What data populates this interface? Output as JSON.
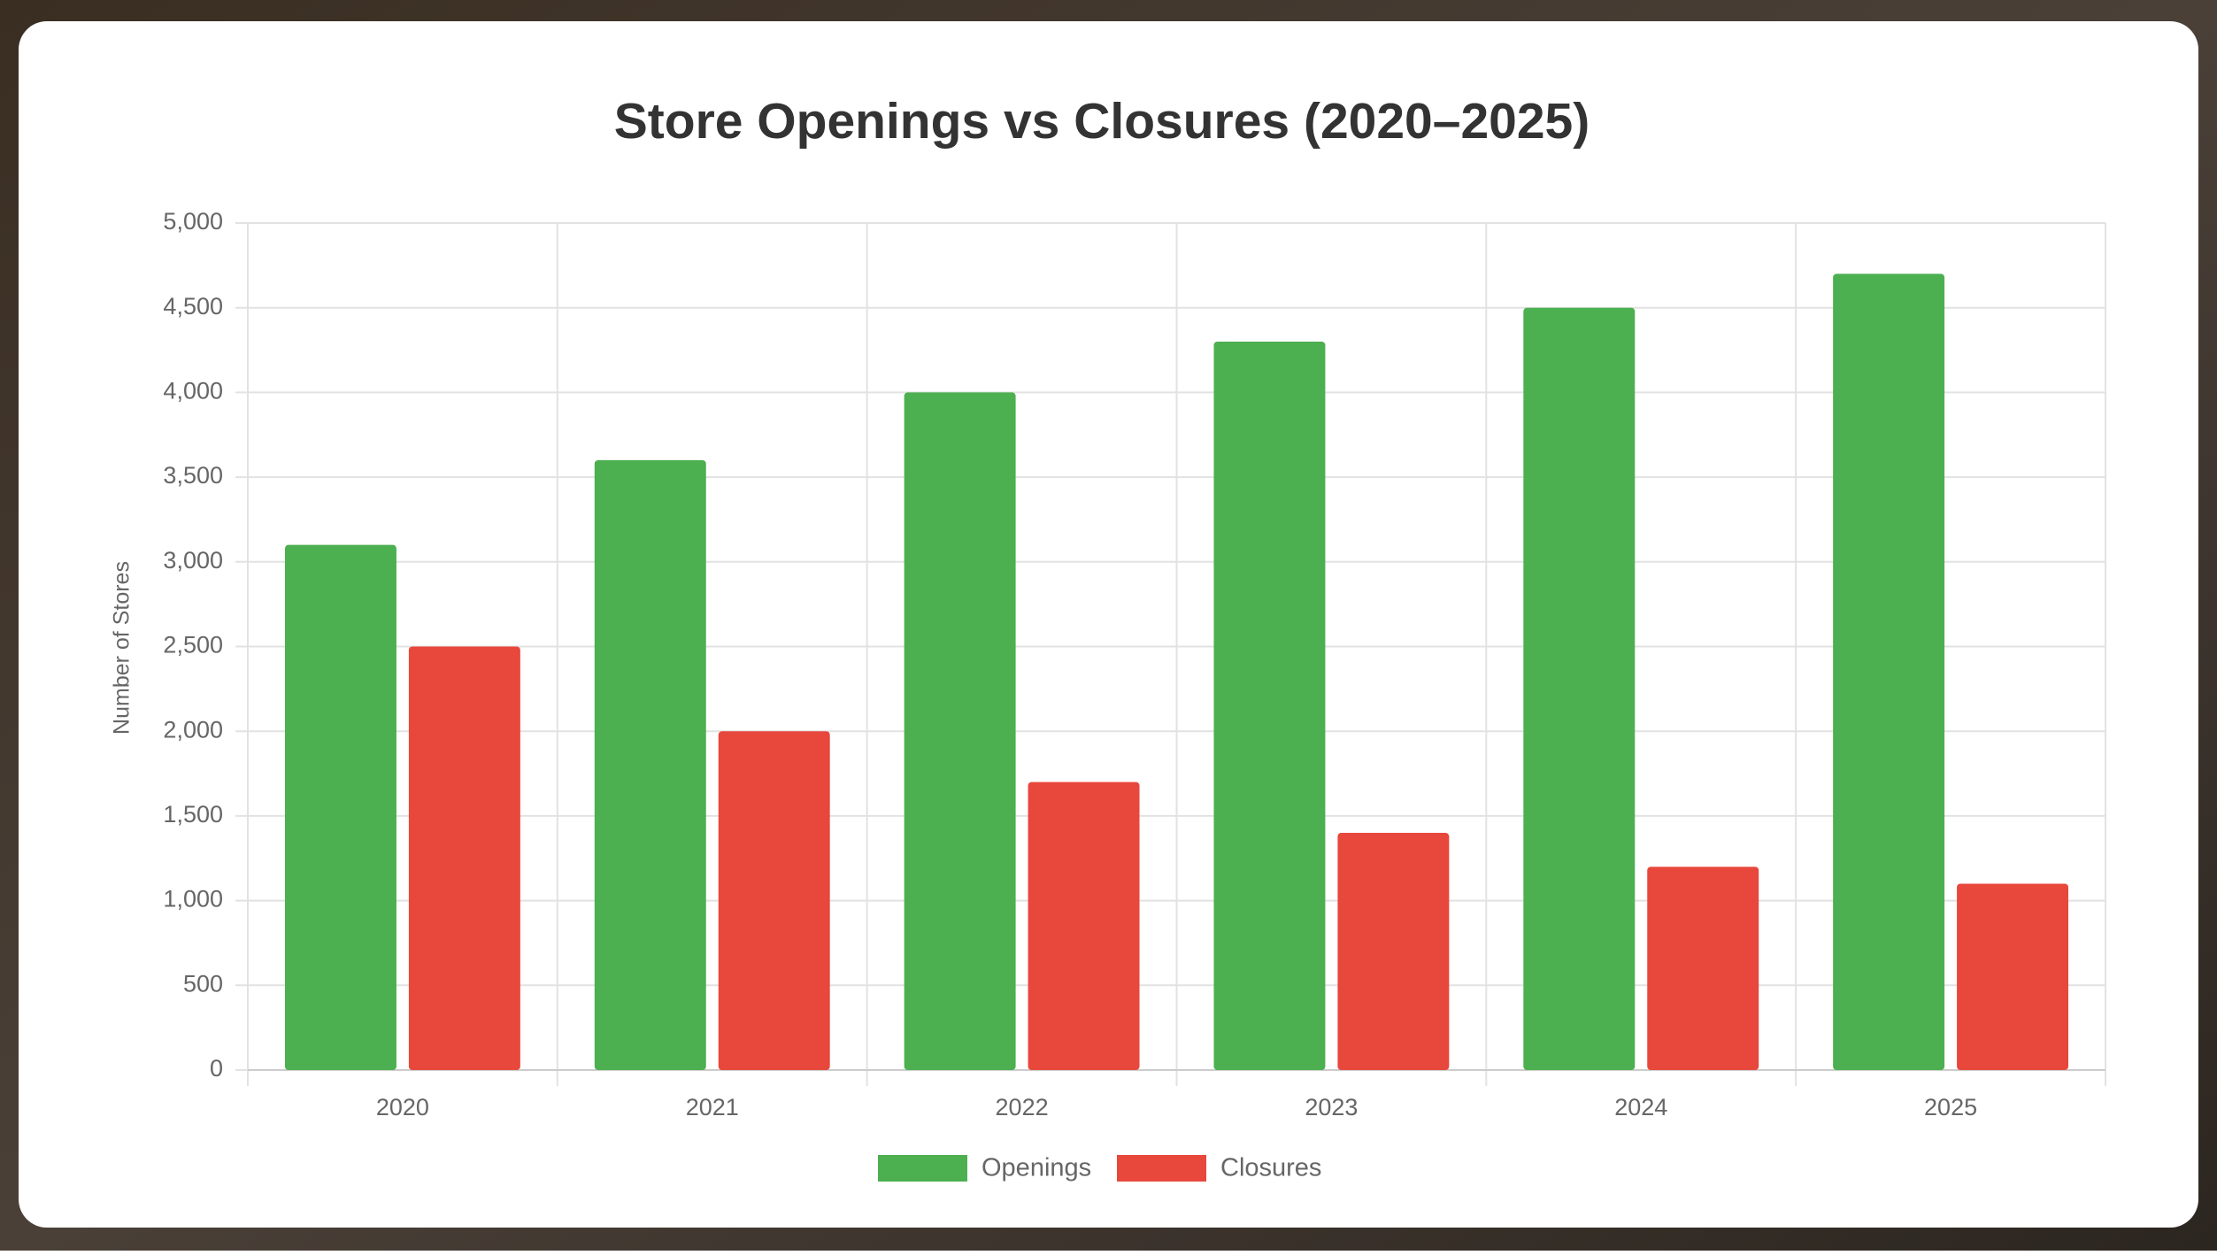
{
  "chart_data": {
    "type": "bar",
    "title": "Store Openings vs Closures (2020–2025)",
    "y_label": "Number of Stores",
    "categories": [
      "2020",
      "2021",
      "2022",
      "2023",
      "2024",
      "2025"
    ],
    "series": [
      {
        "name": "Openings",
        "color": "#4caf50",
        "values": [
          3100,
          3600,
          4000,
          4300,
          4500,
          4700
        ]
      },
      {
        "name": "Closures",
        "color": "#e8473c",
        "values": [
          2500,
          2000,
          1700,
          1400,
          1200,
          1100
        ]
      }
    ],
    "ylim": [
      0,
      5000
    ],
    "yticks": [
      0,
      500,
      {
        "value": 1000,
        "label": "1,000"
      },
      {
        "value": 1500,
        "label": "1,500"
      },
      {
        "value": 2000,
        "label": "2,000"
      },
      {
        "value": 2500,
        "label": "2,500"
      },
      {
        "value": 3000,
        "label": "3,000"
      },
      {
        "value": 3500,
        "label": "3,500"
      },
      {
        "value": 4000,
        "label": "4,000"
      },
      {
        "value": 4500,
        "label": "4,500"
      },
      {
        "value": 5000,
        "label": "5,000"
      }
    ],
    "grid": true
  }
}
